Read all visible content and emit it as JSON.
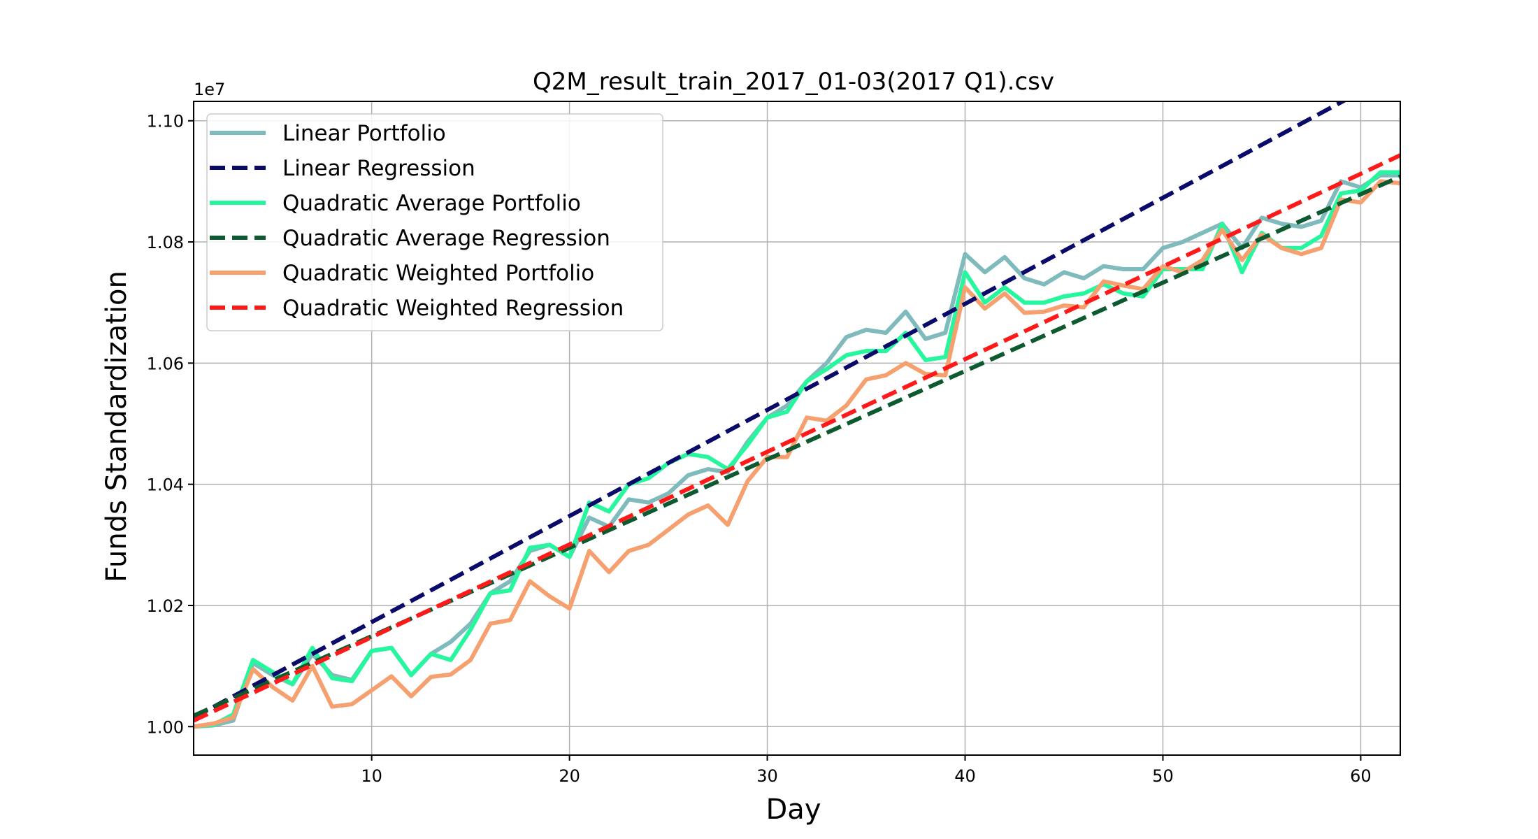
{
  "chart_data": {
    "type": "line",
    "title": "Q2M_result_train_2017_01-03(2017 Q1).csv",
    "xlabel": "Day",
    "ylabel": "Funds Standardization",
    "y_offset_label": "1e7",
    "xlim": [
      1,
      62
    ],
    "ylim": [
      0.9953,
      1.1032
    ],
    "y_scale_note": "y values in units of 1e7",
    "x_ticks": [
      10,
      20,
      30,
      40,
      50,
      60
    ],
    "y_ticks": [
      1.0,
      1.02,
      1.04,
      1.06,
      1.08,
      1.1
    ],
    "y_tick_labels": [
      "1.00",
      "1.02",
      "1.04",
      "1.06",
      "1.08",
      "1.10"
    ],
    "grid": true,
    "legend_position": "upper-left",
    "x": [
      1,
      2,
      3,
      4,
      5,
      6,
      7,
      8,
      9,
      10,
      11,
      12,
      13,
      14,
      15,
      16,
      17,
      18,
      19,
      20,
      21,
      22,
      23,
      24,
      25,
      26,
      27,
      28,
      29,
      30,
      31,
      32,
      33,
      34,
      35,
      36,
      37,
      38,
      39,
      40,
      41,
      42,
      43,
      44,
      45,
      46,
      47,
      48,
      49,
      50,
      51,
      52,
      53,
      54,
      55,
      56,
      57,
      58,
      59,
      60,
      61,
      62
    ],
    "series": [
      {
        "name": "Linear Portfolio",
        "style": "solid",
        "color": "#7fbabd",
        "values": [
          1.0,
          1.0002,
          1.001,
          1.0105,
          1.0085,
          1.007,
          1.012,
          1.0085,
          1.0077,
          1.0125,
          1.013,
          1.0085,
          1.012,
          1.014,
          1.017,
          1.022,
          1.024,
          1.029,
          1.03,
          1.028,
          1.0345,
          1.033,
          1.0375,
          1.037,
          1.0385,
          1.0415,
          1.0425,
          1.042,
          1.047,
          1.051,
          1.053,
          1.057,
          1.06,
          1.0643,
          1.0655,
          1.065,
          1.0685,
          1.064,
          1.065,
          1.078,
          1.075,
          1.0775,
          1.074,
          1.073,
          1.075,
          1.074,
          1.076,
          1.0755,
          1.0755,
          1.079,
          1.08,
          1.0815,
          1.083,
          1.079,
          1.084,
          1.083,
          1.0825,
          1.0835,
          1.09,
          1.089,
          1.091,
          1.091
        ]
      },
      {
        "name": "Linear Regression",
        "style": "dashed",
        "color": "#0a0a6b",
        "values_endpoints": [
          1.0015,
          1.1083
        ]
      },
      {
        "name": "Quadratic Average Portfolio",
        "style": "solid",
        "color": "#26f79e",
        "values": [
          1.0,
          1.0003,
          1.002,
          1.011,
          1.009,
          1.007,
          1.013,
          1.008,
          1.0075,
          1.0125,
          1.013,
          1.0085,
          1.012,
          1.011,
          1.016,
          1.022,
          1.0225,
          1.0295,
          1.03,
          1.028,
          1.037,
          1.0355,
          1.04,
          1.041,
          1.0435,
          1.045,
          1.0445,
          1.0425,
          1.0465,
          1.051,
          1.052,
          1.057,
          1.059,
          1.0613,
          1.062,
          1.062,
          1.065,
          1.0605,
          1.061,
          1.075,
          1.07,
          1.0725,
          1.07,
          1.07,
          1.071,
          1.0715,
          1.073,
          1.0715,
          1.071,
          1.0755,
          1.0755,
          1.0755,
          1.083,
          1.075,
          1.0815,
          1.079,
          1.079,
          1.081,
          1.088,
          1.0885,
          1.0915,
          1.0915
        ]
      },
      {
        "name": "Quadratic Average Regression",
        "style": "dashed",
        "color": "#0e5a30",
        "values_endpoints": [
          1.0018,
          1.0908
        ]
      },
      {
        "name": "Quadratic Weighted Portfolio",
        "style": "solid",
        "color": "#f6a06f",
        "values": [
          1.0,
          1.0005,
          1.0015,
          1.0095,
          1.0065,
          1.0043,
          1.01,
          1.0033,
          1.0037,
          1.006,
          1.0083,
          1.005,
          1.0082,
          1.0086,
          1.011,
          1.017,
          1.0176,
          1.024,
          1.0215,
          1.0195,
          1.029,
          1.0255,
          1.029,
          1.03,
          1.0325,
          1.035,
          1.0365,
          1.0333,
          1.0405,
          1.0445,
          1.0445,
          1.051,
          1.0505,
          1.053,
          1.0573,
          1.058,
          1.06,
          1.0582,
          1.058,
          1.0725,
          1.069,
          1.0715,
          1.0683,
          1.0685,
          1.0695,
          1.0692,
          1.0735,
          1.0728,
          1.0722,
          1.076,
          1.075,
          1.077,
          1.082,
          1.077,
          1.0812,
          1.079,
          1.078,
          1.079,
          1.087,
          1.0865,
          1.09,
          1.0897
        ]
      },
      {
        "name": "Quadratic Weighted Regression",
        "style": "dashed",
        "color": "#ff1a1a",
        "values_endpoints": [
          1.001,
          1.0943
        ]
      }
    ]
  }
}
